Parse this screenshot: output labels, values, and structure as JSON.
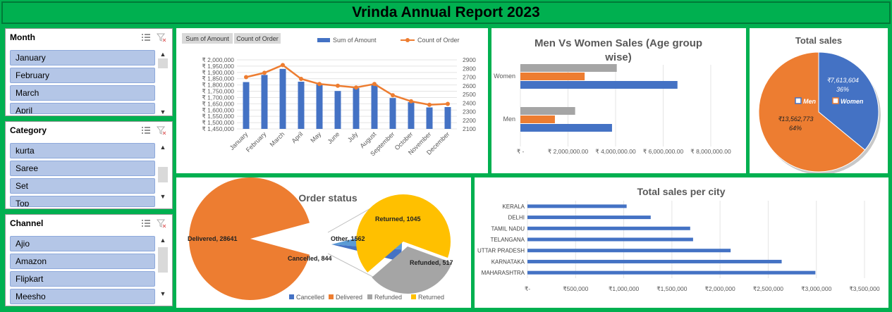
{
  "title": "Vrinda Annual Report 2023",
  "slicers": {
    "month": {
      "title": "Month",
      "items": [
        "January",
        "February",
        "March",
        "April"
      ]
    },
    "category": {
      "title": "Category",
      "items": [
        "kurta",
        "Saree",
        "Set",
        "Top"
      ]
    },
    "channel": {
      "title": "Channel",
      "items": [
        "Ajio",
        "Amazon",
        "Flipkart",
        "Meesho"
      ]
    }
  },
  "icons": {
    "multiselect": "multiselect-icon",
    "clear_filter": "clear-filter-icon",
    "scroll_up": "scroll-up-icon",
    "scroll_down": "scroll-down-icon"
  },
  "chart_data": [
    {
      "id": "monthly",
      "type": "bar",
      "title": "",
      "field_buttons": [
        "Sum of Amount",
        "Count of Order"
      ],
      "categories": [
        "January",
        "February",
        "March",
        "April",
        "May",
        "June",
        "July",
        "August",
        "September",
        "October",
        "November",
        "December"
      ],
      "series": [
        {
          "name": "Sum of Amount",
          "type": "bar",
          "color": "#4472c4",
          "axis": "left",
          "values": [
            1823000,
            1880000,
            1928000,
            1826000,
            1806000,
            1752000,
            1775000,
            1806000,
            1696000,
            1663000,
            1621000,
            1624000
          ]
        },
        {
          "name": "Count of Order",
          "type": "line",
          "color": "#ed7d31",
          "axis": "right",
          "values": [
            2700,
            2750,
            2840,
            2680,
            2620,
            2600,
            2580,
            2620,
            2490,
            2420,
            2380,
            2390
          ]
        }
      ],
      "ylim": [
        1450000,
        2000000
      ],
      "yticks": [
        "₹ 2,000,000",
        "₹ 1,950,000",
        "₹ 1,900,000",
        "₹ 1,850,000",
        "₹ 1,800,000",
        "₹ 1,750,000",
        "₹ 1,700,000",
        "₹ 1,650,000",
        "₹ 1,600,000",
        "₹ 1,550,000",
        "₹ 1,500,000",
        "₹ 1,450,000"
      ],
      "y2lim": [
        2100,
        2900
      ],
      "y2ticks": [
        "2900",
        "2800",
        "2700",
        "2600",
        "2500",
        "2400",
        "2300",
        "2200",
        "2100"
      ],
      "legend_position": "top"
    },
    {
      "id": "men-women",
      "type": "bar",
      "orientation": "horizontal",
      "title": "Men Vs Women Sales (Age group wise)",
      "categories": [
        "Women",
        "Men"
      ],
      "series": [
        {
          "color": "#a5a5a5",
          "values": [
            4050000,
            2300000
          ]
        },
        {
          "color": "#ed7d31",
          "values": [
            2700000,
            1450000
          ]
        },
        {
          "color": "#4472c4",
          "values": [
            6600000,
            3850000
          ]
        }
      ],
      "xlim": [
        0,
        8000000
      ],
      "xticks": [
        "₹ -",
        "₹ 2,000,000.00",
        "₹ 4,000,000.00",
        "₹ 6,000,000.00",
        "₹ 8,000,000.00"
      ]
    },
    {
      "id": "total-sales",
      "type": "pie",
      "title": "Total sales",
      "slices": [
        {
          "label": "Men",
          "value": 7613604,
          "text": "₹7,613,604",
          "pct": "36%",
          "color": "#4472c4"
        },
        {
          "label": "Women",
          "value": 13562773,
          "text": "₹13,562,773",
          "pct": "64%",
          "color": "#ed7d31"
        }
      ],
      "legend_position": "center"
    },
    {
      "id": "order-status",
      "type": "pie",
      "title": "Order status",
      "slices": [
        {
          "label": "Cancelled",
          "value": 844,
          "text": "Cancelled, 844",
          "color": "#4472c4"
        },
        {
          "label": "Delivered",
          "value": 28641,
          "text": "Delivered, 28641",
          "color": "#ed7d31"
        },
        {
          "label": "Refunded",
          "value": 517,
          "text": "Refunded, 517",
          "color": "#a5a5a5"
        },
        {
          "label": "Returned",
          "value": 1045,
          "text": "Returned, 1045",
          "color": "#ffc000"
        }
      ],
      "other_text": "Other, 1562",
      "legend": [
        "Cancelled",
        "Delivered",
        "Refunded",
        "Returned"
      ],
      "legend_position": "bottom"
    },
    {
      "id": "city-sales",
      "type": "bar",
      "orientation": "horizontal",
      "title": "Total sales per city",
      "categories": [
        "KERALA",
        "DELHI",
        "TAMIL NADU",
        "TELANGANA",
        "UTTAR PRADESH",
        "KARNATAKA",
        "MAHARASHTRA"
      ],
      "values": [
        1030000,
        1280000,
        1690000,
        1720000,
        2110000,
        2640000,
        2990000
      ],
      "color": "#4472c4",
      "xlim": [
        0,
        3500000
      ],
      "xticks": [
        "₹-",
        "₹500,000",
        "₹1,000,000",
        "₹1,500,000",
        "₹2,000,000",
        "₹2,500,000",
        "₹3,000,000",
        "₹3,500,000"
      ]
    }
  ]
}
